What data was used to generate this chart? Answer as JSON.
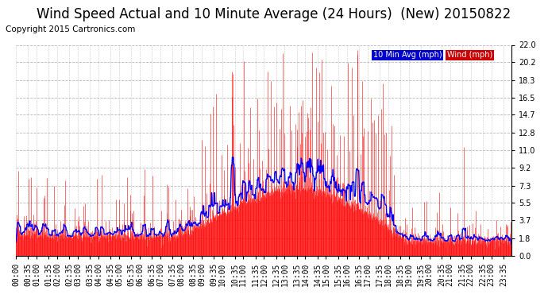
{
  "title": "Wind Speed Actual and 10 Minute Average (24 Hours)  (New) 20150822",
  "copyright": "Copyright 2015 Cartronics.com",
  "legend_labels": [
    "10 Min Avg (mph)",
    "Wind (mph)"
  ],
  "legend_bg_blue": "#0000cc",
  "legend_bg_red": "#cc0000",
  "yticks": [
    0.0,
    1.8,
    3.7,
    5.5,
    7.3,
    9.2,
    11.0,
    12.8,
    14.7,
    16.5,
    18.3,
    20.2,
    22.0
  ],
  "ylim": [
    0.0,
    22.0
  ],
  "background_color": "#ffffff",
  "plot_bg_color": "#ffffff",
  "grid_color": "#b0b0b0",
  "wind_color": "#ff0000",
  "avg_color": "#0000ff",
  "title_fontsize": 12,
  "copyright_fontsize": 7.5,
  "tick_fontsize": 7
}
